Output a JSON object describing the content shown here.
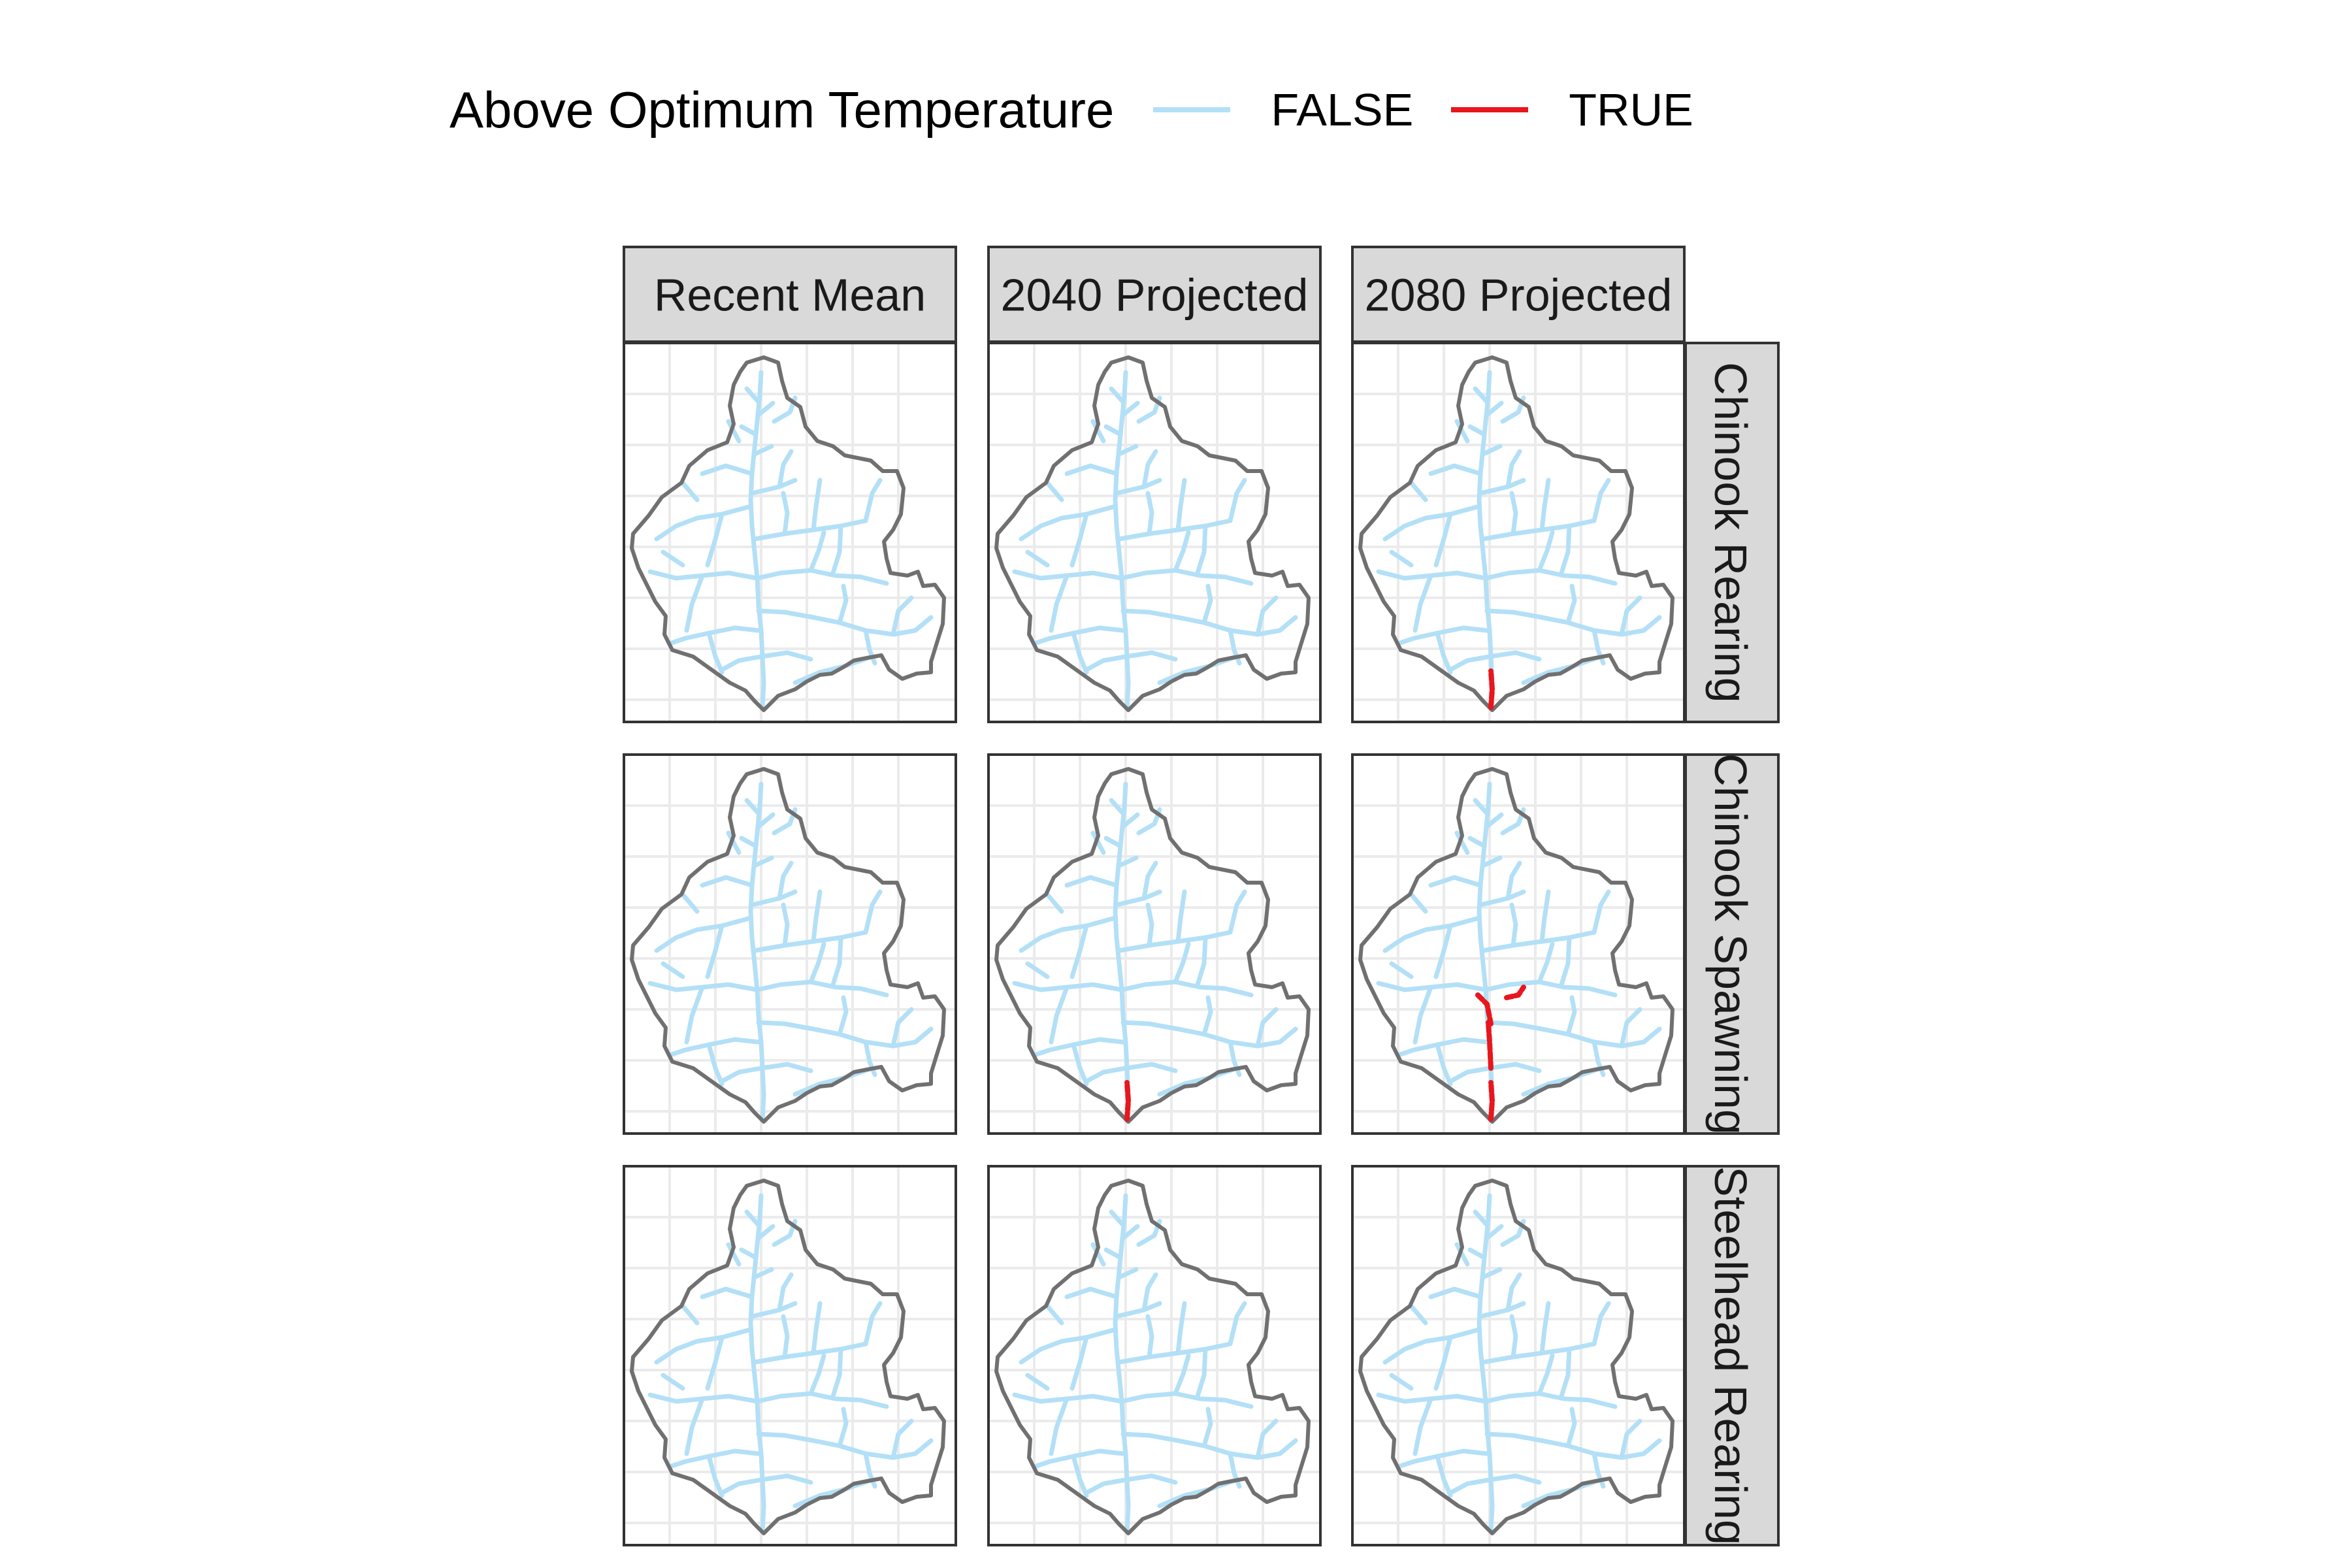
{
  "legend": {
    "title": "Above Optimum Temperature",
    "items": [
      {
        "label": "FALSE",
        "color": "#b3e0f7"
      },
      {
        "label": "TRUE",
        "color": "#e8161d"
      }
    ]
  },
  "columns": [
    "Recent Mean",
    "2040 Projected",
    "2080 Projected"
  ],
  "rows": [
    "Chinook Rearing",
    "Chinook Spawning",
    "Steelhead Rearing"
  ],
  "panels": [
    {
      "row": 0,
      "col": 0,
      "above_optimum_segments": []
    },
    {
      "row": 0,
      "col": 1,
      "above_optimum_segments": []
    },
    {
      "row": 0,
      "col": 2,
      "above_optimum_segments": [
        "outlet"
      ]
    },
    {
      "row": 1,
      "col": 0,
      "above_optimum_segments": []
    },
    {
      "row": 1,
      "col": 1,
      "above_optimum_segments": [
        "outlet"
      ]
    },
    {
      "row": 1,
      "col": 2,
      "above_optimum_segments": [
        "outlet",
        "lower-mainstem",
        "confluence",
        "east-fork"
      ]
    },
    {
      "row": 2,
      "col": 0,
      "above_optimum_segments": []
    },
    {
      "row": 2,
      "col": 1,
      "above_optimum_segments": []
    },
    {
      "row": 2,
      "col": 2,
      "above_optimum_segments": []
    }
  ],
  "colors": {
    "boundary": "#707070",
    "grid": "#ebebeb",
    "strip_fill": "#d9d9d9",
    "panel_border": "#333333"
  }
}
